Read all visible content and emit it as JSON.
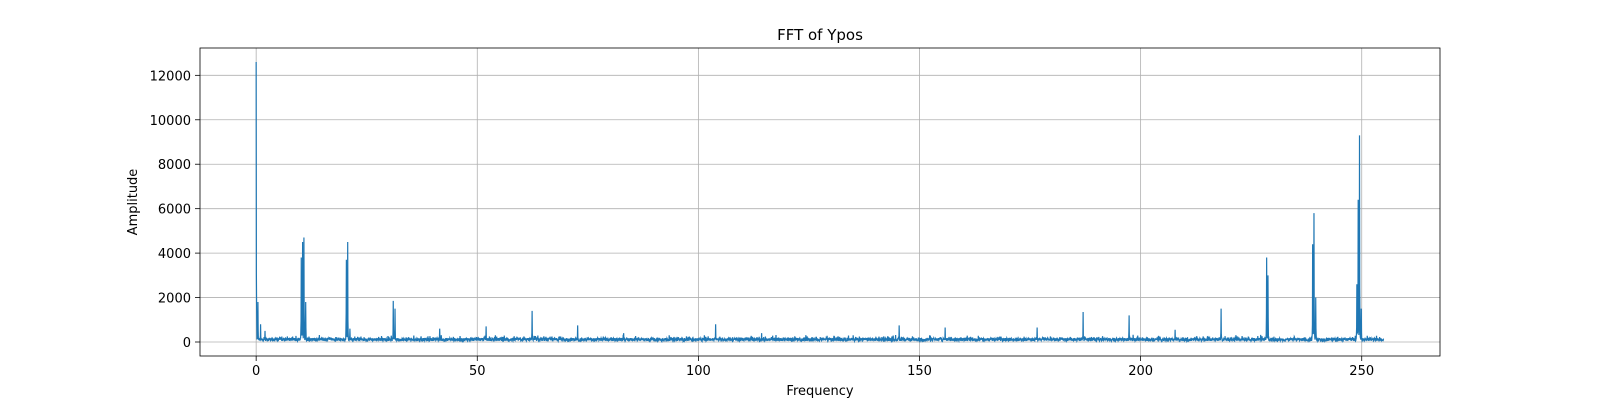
{
  "chart_data": {
    "type": "line",
    "title": "FFT of Ypos",
    "xlabel": "Frequency",
    "ylabel": "Amplitude",
    "xlim": [
      -12.7,
      267.7
    ],
    "ylim": [
      -630,
      13230
    ],
    "xticks": [
      0,
      50,
      100,
      150,
      200,
      250
    ],
    "yticks": [
      0,
      2000,
      4000,
      6000,
      8000,
      10000,
      12000
    ],
    "grid": true,
    "x_range": [
      0,
      255
    ],
    "baseline": 150,
    "peaks": [
      {
        "x": 0.0,
        "y": 12600
      },
      {
        "x": 0.4,
        "y": 1800
      },
      {
        "x": 1.0,
        "y": 800
      },
      {
        "x": 2.0,
        "y": 500
      },
      {
        "x": 10.2,
        "y": 3800
      },
      {
        "x": 10.5,
        "y": 4500
      },
      {
        "x": 10.8,
        "y": 4700
      },
      {
        "x": 11.2,
        "y": 1800
      },
      {
        "x": 20.4,
        "y": 3700
      },
      {
        "x": 20.7,
        "y": 4500
      },
      {
        "x": 21.2,
        "y": 600
      },
      {
        "x": 31.0,
        "y": 1850
      },
      {
        "x": 31.4,
        "y": 1500
      },
      {
        "x": 41.5,
        "y": 600
      },
      {
        "x": 52.0,
        "y": 700
      },
      {
        "x": 62.4,
        "y": 1400
      },
      {
        "x": 72.7,
        "y": 750
      },
      {
        "x": 83.1,
        "y": 400
      },
      {
        "x": 93.4,
        "y": 300
      },
      {
        "x": 103.9,
        "y": 800
      },
      {
        "x": 114.3,
        "y": 400
      },
      {
        "x": 124.6,
        "y": 250
      },
      {
        "x": 135.0,
        "y": 300
      },
      {
        "x": 145.4,
        "y": 750
      },
      {
        "x": 155.8,
        "y": 650
      },
      {
        "x": 166.2,
        "y": 200
      },
      {
        "x": 176.6,
        "y": 650
      },
      {
        "x": 187.0,
        "y": 1350
      },
      {
        "x": 197.4,
        "y": 1200
      },
      {
        "x": 207.8,
        "y": 550
      },
      {
        "x": 218.2,
        "y": 1500
      },
      {
        "x": 228.5,
        "y": 3800
      },
      {
        "x": 228.8,
        "y": 3000
      },
      {
        "x": 238.9,
        "y": 4400
      },
      {
        "x": 239.2,
        "y": 5800
      },
      {
        "x": 239.6,
        "y": 2000
      },
      {
        "x": 248.9,
        "y": 2600
      },
      {
        "x": 249.2,
        "y": 6400
      },
      {
        "x": 249.5,
        "y": 9300
      },
      {
        "x": 249.9,
        "y": 1500
      }
    ],
    "series": [
      {
        "color": "#1f77b4"
      }
    ]
  }
}
